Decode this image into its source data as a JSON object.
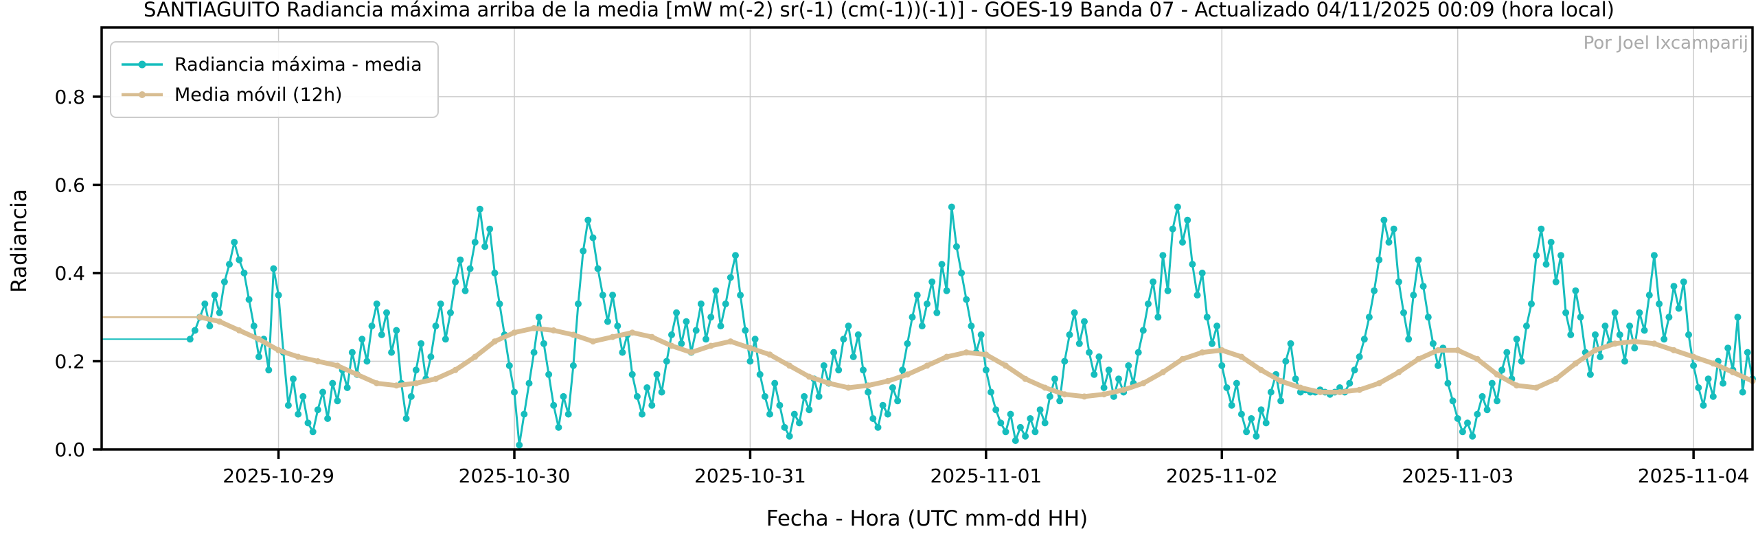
{
  "title": "SANTIAGUITO Radiancia máxima arriba de la media [mW m(-2) sr(-1) (cm(-1))(-1)] - GOES-19 Banda 07 - Actualizado 04/11/2025 00:09 (hora local)",
  "credit": "Por Joel Ixcamparij",
  "colors": {
    "series_max": "#16bdbd",
    "series_avg": "#d8bd92",
    "grid": "#cccccc",
    "spine": "#000000",
    "credit_text": "#aaaaaa",
    "background": "#ffffff"
  },
  "chart_data": {
    "type": "line",
    "title": "SANTIAGUITO Radiancia máxima arriba de la media [mW m(-2) sr(-1) (cm(-1))(-1)] - GOES-19 Banda 07 - Actualizado 04/11/2025 00:09 (hora local)",
    "xlabel": "Fecha - Hora (UTC mm-dd HH)",
    "ylabel": "Radiancia",
    "grid": true,
    "legend_position": "upper left",
    "x_unit": "hours since 2025-10-28 06:00 UTC",
    "x_range_hours": [
      0,
      168
    ],
    "ylim": [
      0.0,
      0.957
    ],
    "yticks": [
      0.0,
      0.2,
      0.4,
      0.6,
      0.8
    ],
    "ytick_labels": [
      "0.0",
      "0.2",
      "0.4",
      "0.6",
      "0.8"
    ],
    "xticks": [
      {
        "t": 18,
        "label": "2025-10-29"
      },
      {
        "t": 42,
        "label": "2025-10-30"
      },
      {
        "t": 66,
        "label": "2025-10-31"
      },
      {
        "t": 90,
        "label": "2025-11-01"
      },
      {
        "t": 114,
        "label": "2025-11-02"
      },
      {
        "t": 138,
        "label": "2025-11-03"
      },
      {
        "t": 162,
        "label": "2025-11-04"
      }
    ],
    "series": [
      {
        "name": "Radiancia máxima - media",
        "color": "#16bdbd",
        "start_hour": 0,
        "step_hours": 0.5,
        "flat_until_hour": 9,
        "line_width": 3,
        "flat_line_width": 2,
        "marker_radius": 5,
        "values": [
          0.25,
          0.25,
          0.25,
          0.25,
          0.25,
          0.25,
          0.25,
          0.25,
          0.25,
          0.25,
          0.25,
          0.25,
          0.25,
          0.25,
          0.25,
          0.25,
          0.25,
          0.25,
          0.25,
          0.27,
          0.3,
          0.33,
          0.28,
          0.35,
          0.31,
          0.38,
          0.42,
          0.47,
          0.43,
          0.4,
          0.34,
          0.28,
          0.21,
          0.25,
          0.18,
          0.41,
          0.35,
          0.22,
          0.1,
          0.16,
          0.08,
          0.12,
          0.06,
          0.04,
          0.09,
          0.13,
          0.07,
          0.15,
          0.11,
          0.18,
          0.14,
          0.22,
          0.17,
          0.25,
          0.2,
          0.28,
          0.33,
          0.26,
          0.31,
          0.22,
          0.27,
          0.15,
          0.07,
          0.12,
          0.18,
          0.24,
          0.16,
          0.21,
          0.28,
          0.33,
          0.25,
          0.31,
          0.38,
          0.43,
          0.36,
          0.41,
          0.47,
          0.545,
          0.46,
          0.5,
          0.4,
          0.33,
          0.26,
          0.19,
          0.13,
          0.01,
          0.08,
          0.15,
          0.22,
          0.3,
          0.24,
          0.17,
          0.1,
          0.05,
          0.12,
          0.08,
          0.19,
          0.33,
          0.45,
          0.52,
          0.48,
          0.41,
          0.35,
          0.29,
          0.35,
          0.28,
          0.22,
          0.26,
          0.17,
          0.12,
          0.08,
          0.14,
          0.1,
          0.17,
          0.13,
          0.2,
          0.26,
          0.31,
          0.24,
          0.29,
          0.22,
          0.27,
          0.33,
          0.25,
          0.3,
          0.36,
          0.28,
          0.33,
          0.39,
          0.44,
          0.35,
          0.27,
          0.2,
          0.25,
          0.17,
          0.12,
          0.08,
          0.15,
          0.1,
          0.05,
          0.03,
          0.08,
          0.06,
          0.12,
          0.09,
          0.16,
          0.12,
          0.19,
          0.15,
          0.22,
          0.18,
          0.25,
          0.28,
          0.21,
          0.26,
          0.18,
          0.13,
          0.07,
          0.05,
          0.1,
          0.08,
          0.14,
          0.11,
          0.18,
          0.24,
          0.3,
          0.35,
          0.28,
          0.33,
          0.38,
          0.31,
          0.42,
          0.36,
          0.55,
          0.46,
          0.4,
          0.34,
          0.28,
          0.22,
          0.26,
          0.18,
          0.13,
          0.09,
          0.06,
          0.04,
          0.08,
          0.02,
          0.05,
          0.03,
          0.07,
          0.04,
          0.09,
          0.06,
          0.12,
          0.16,
          0.11,
          0.2,
          0.26,
          0.31,
          0.24,
          0.29,
          0.22,
          0.17,
          0.21,
          0.14,
          0.18,
          0.12,
          0.16,
          0.13,
          0.19,
          0.15,
          0.22,
          0.27,
          0.33,
          0.38,
          0.3,
          0.44,
          0.36,
          0.5,
          0.55,
          0.47,
          0.52,
          0.42,
          0.35,
          0.4,
          0.3,
          0.24,
          0.28,
          0.19,
          0.14,
          0.1,
          0.15,
          0.08,
          0.04,
          0.07,
          0.03,
          0.09,
          0.06,
          0.13,
          0.17,
          0.11,
          0.2,
          0.24,
          0.16,
          0.13,
          0.135,
          0.13,
          0.13,
          0.135,
          0.13,
          0.125,
          0.13,
          0.14,
          0.13,
          0.15,
          0.18,
          0.21,
          0.25,
          0.3,
          0.36,
          0.43,
          0.52,
          0.47,
          0.5,
          0.38,
          0.31,
          0.25,
          0.35,
          0.43,
          0.37,
          0.3,
          0.24,
          0.19,
          0.23,
          0.15,
          0.11,
          0.07,
          0.04,
          0.06,
          0.03,
          0.08,
          0.12,
          0.09,
          0.15,
          0.11,
          0.18,
          0.22,
          0.16,
          0.25,
          0.2,
          0.28,
          0.33,
          0.44,
          0.5,
          0.42,
          0.47,
          0.38,
          0.44,
          0.31,
          0.26,
          0.36,
          0.3,
          0.22,
          0.17,
          0.26,
          0.21,
          0.28,
          0.24,
          0.31,
          0.26,
          0.2,
          0.28,
          0.23,
          0.31,
          0.27,
          0.35,
          0.44,
          0.33,
          0.25,
          0.3,
          0.37,
          0.32,
          0.38,
          0.26,
          0.19,
          0.14,
          0.1,
          0.16,
          0.12,
          0.2,
          0.15,
          0.23,
          0.18,
          0.3,
          0.13,
          0.22,
          0.16
        ]
      },
      {
        "name": "Media móvil (12h)",
        "color": "#d8bd92",
        "start_hour": 0,
        "step_hours": 2,
        "flat_until_hour": 10,
        "line_width": 7,
        "flat_line_width": 2.5,
        "marker_radius": 4.5,
        "values": [
          0.3,
          0.3,
          0.3,
          0.3,
          0.3,
          0.3,
          0.29,
          0.27,
          0.25,
          0.225,
          0.21,
          0.2,
          0.19,
          0.17,
          0.15,
          0.145,
          0.15,
          0.16,
          0.18,
          0.21,
          0.245,
          0.265,
          0.275,
          0.27,
          0.26,
          0.245,
          0.255,
          0.265,
          0.255,
          0.235,
          0.22,
          0.235,
          0.245,
          0.23,
          0.215,
          0.19,
          0.165,
          0.15,
          0.14,
          0.145,
          0.155,
          0.17,
          0.19,
          0.21,
          0.22,
          0.215,
          0.19,
          0.16,
          0.14,
          0.125,
          0.12,
          0.125,
          0.135,
          0.15,
          0.175,
          0.205,
          0.22,
          0.225,
          0.21,
          0.18,
          0.155,
          0.14,
          0.13,
          0.13,
          0.135,
          0.15,
          0.175,
          0.205,
          0.225,
          0.225,
          0.205,
          0.17,
          0.145,
          0.14,
          0.16,
          0.195,
          0.225,
          0.24,
          0.245,
          0.24,
          0.225,
          0.21,
          0.195,
          0.175,
          0.155
        ]
      }
    ]
  },
  "legend": {
    "items": [
      {
        "label": "Radiancia máxima - media"
      },
      {
        "label": "Media móvil (12h)"
      }
    ]
  },
  "axes": {
    "x_label": "Fecha - Hora (UTC mm-dd HH)",
    "y_label": "Radiancia"
  }
}
